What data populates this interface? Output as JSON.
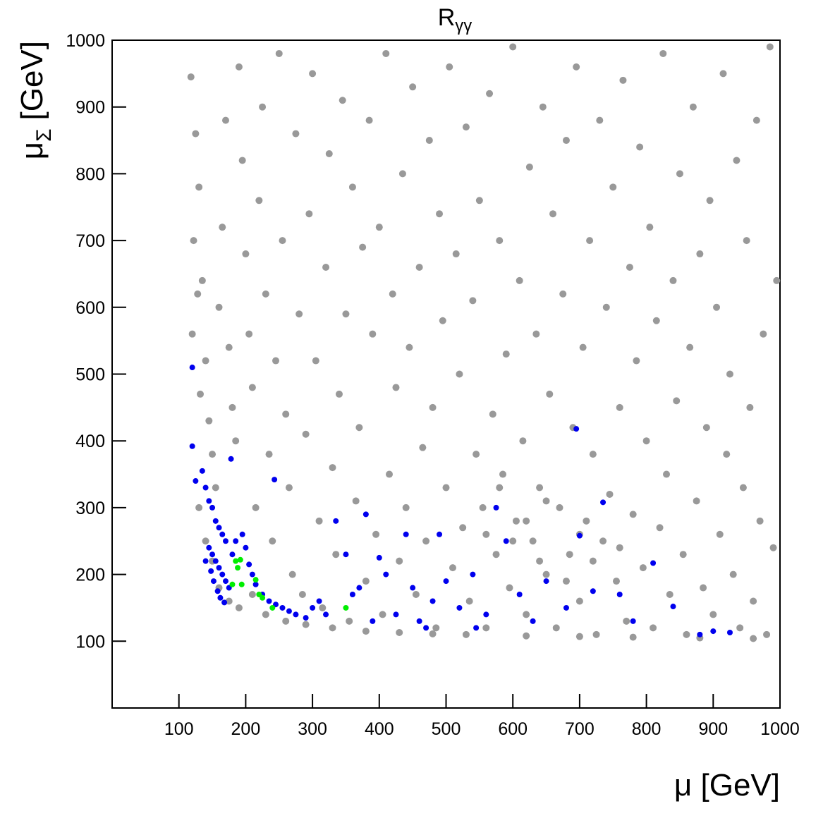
{
  "chart_data": {
    "type": "scatter",
    "title": "R",
    "title_subscript": "γγ",
    "x_label": "μ [GeV]",
    "y_label": "μ",
    "y_label_subscript": "Σ",
    "y_label_unit": "[GeV]",
    "xlim": [
      0,
      1000
    ],
    "ylim": [
      0,
      1000
    ],
    "xticks": [
      100,
      200,
      300,
      400,
      500,
      600,
      700,
      800,
      900,
      1000
    ],
    "yticks": [
      100,
      200,
      300,
      400,
      500,
      600,
      700,
      800,
      900,
      1000
    ],
    "grid": false,
    "series": [
      {
        "color": "#999999",
        "x": [
          118,
          125,
          130,
          122,
          128,
          120,
          135,
          140,
          132,
          145,
          150,
          155,
          160,
          165,
          170,
          175,
          180,
          185,
          190,
          195,
          200,
          205,
          210,
          215,
          220,
          225,
          230,
          235,
          240,
          245,
          250,
          255,
          260,
          265,
          270,
          275,
          280,
          285,
          290,
          295,
          300,
          305,
          310,
          315,
          320,
          325,
          330,
          335,
          340,
          345,
          350,
          355,
          360,
          365,
          370,
          375,
          380,
          385,
          390,
          395,
          400,
          405,
          410,
          415,
          420,
          425,
          430,
          435,
          440,
          445,
          450,
          455,
          460,
          465,
          470,
          475,
          480,
          485,
          490,
          495,
          500,
          505,
          510,
          515,
          520,
          525,
          530,
          535,
          540,
          545,
          550,
          555,
          560,
          565,
          570,
          575,
          580,
          585,
          590,
          595,
          600,
          605,
          610,
          615,
          620,
          625,
          630,
          635,
          640,
          645,
          650,
          655,
          660,
          665,
          670,
          675,
          680,
          685,
          690,
          695,
          700,
          705,
          710,
          715,
          720,
          725,
          730,
          735,
          740,
          745,
          750,
          755,
          760,
          765,
          770,
          775,
          780,
          785,
          790,
          795,
          800,
          805,
          810,
          815,
          820,
          825,
          830,
          835,
          840,
          845,
          850,
          855,
          860,
          865,
          870,
          875,
          880,
          885,
          890,
          895,
          900,
          905,
          910,
          915,
          920,
          925,
          930,
          935,
          940,
          945,
          950,
          955,
          960,
          965,
          970,
          975,
          980,
          985,
          990,
          995,
          130,
          140,
          150,
          160,
          175,
          190,
          210,
          230,
          260,
          290,
          330,
          380,
          430,
          480,
          530,
          620,
          700,
          780,
          880,
          960,
          600,
          620,
          650,
          580,
          700,
          720,
          560,
          680,
          640,
          760
        ],
        "values": [
          945,
          860,
          780,
          700,
          620,
          560,
          640,
          520,
          470,
          430,
          380,
          330,
          600,
          720,
          880,
          540,
          450,
          400,
          960,
          820,
          680,
          560,
          480,
          300,
          760,
          900,
          620,
          380,
          250,
          520,
          980,
          700,
          440,
          330,
          200,
          860,
          590,
          170,
          410,
          740,
          950,
          520,
          280,
          150,
          660,
          830,
          360,
          230,
          470,
          910,
          590,
          130,
          780,
          310,
          420,
          690,
          190,
          880,
          560,
          260,
          720,
          140,
          980,
          350,
          620,
          480,
          220,
          800,
          300,
          540,
          930,
          170,
          660,
          390,
          250,
          850,
          450,
          120,
          740,
          580,
          330,
          960,
          210,
          680,
          500,
          270,
          870,
          160,
          610,
          380,
          760,
          300,
          120,
          920,
          440,
          230,
          700,
          350,
          530,
          180,
          990,
          280,
          640,
          400,
          140,
          810,
          250,
          560,
          330,
          900,
          200,
          470,
          740,
          120,
          300,
          620,
          850,
          230,
          420,
          960,
          160,
          540,
          280,
          700,
          380,
          110,
          880,
          250,
          600,
          320,
          780,
          190,
          450,
          940,
          130,
          660,
          290,
          520,
          840,
          210,
          400,
          720,
          120,
          580,
          270,
          980,
          350,
          170,
          640,
          460,
          800,
          230,
          110,
          540,
          900,
          310,
          680,
          180,
          420,
          760,
          140,
          600,
          260,
          950,
          380,
          500,
          200,
          820,
          120,
          330,
          700,
          450,
          160,
          880,
          280,
          560,
          110,
          990,
          240,
          640,
          300,
          250,
          220,
          180,
          160,
          150,
          170,
          140,
          130,
          125,
          120,
          115,
          113,
          111,
          110,
          108,
          107,
          106,
          105,
          104,
          250,
          280,
          310,
          330,
          260,
          220,
          260,
          190,
          220,
          240
        ]
      },
      {
        "color": "#0000ee",
        "x": [
          120,
          120,
          178,
          243,
          125,
          135,
          140,
          145,
          150,
          155,
          160,
          165,
          170,
          145,
          150,
          155,
          160,
          165,
          170,
          175,
          140,
          148,
          152,
          158,
          162,
          168,
          180,
          185,
          195,
          200,
          205,
          210,
          215,
          225,
          235,
          245,
          255,
          265,
          275,
          290,
          300,
          310,
          320,
          335,
          350,
          360,
          370,
          380,
          390,
          400,
          410,
          425,
          440,
          450,
          460,
          480,
          490,
          500,
          520,
          540,
          560,
          575,
          590,
          610,
          630,
          650,
          680,
          695,
          700,
          720,
          735,
          760,
          780,
          810,
          840,
          880,
          900,
          925,
          545,
          470
        ],
        "values": [
          510,
          392,
          373,
          342,
          340,
          355,
          330,
          310,
          300,
          280,
          270,
          260,
          250,
          240,
          230,
          220,
          210,
          200,
          190,
          180,
          220,
          205,
          190,
          175,
          165,
          158,
          230,
          250,
          260,
          240,
          215,
          200,
          185,
          170,
          160,
          155,
          150,
          145,
          140,
          135,
          150,
          160,
          140,
          280,
          230,
          170,
          180,
          290,
          130,
          225,
          200,
          140,
          260,
          180,
          130,
          160,
          260,
          190,
          150,
          200,
          140,
          300,
          250,
          170,
          130,
          190,
          150,
          418,
          258,
          175,
          308,
          170,
          130,
          217,
          152,
          110,
          115,
          113,
          120,
          120
        ]
      },
      {
        "color": "#00ee00",
        "x": [
          185,
          192,
          188,
          180,
          194,
          215,
          220,
          225,
          240,
          350
        ],
        "values": [
          220,
          222,
          210,
          185,
          185,
          192,
          170,
          165,
          150,
          150
        ]
      }
    ]
  }
}
